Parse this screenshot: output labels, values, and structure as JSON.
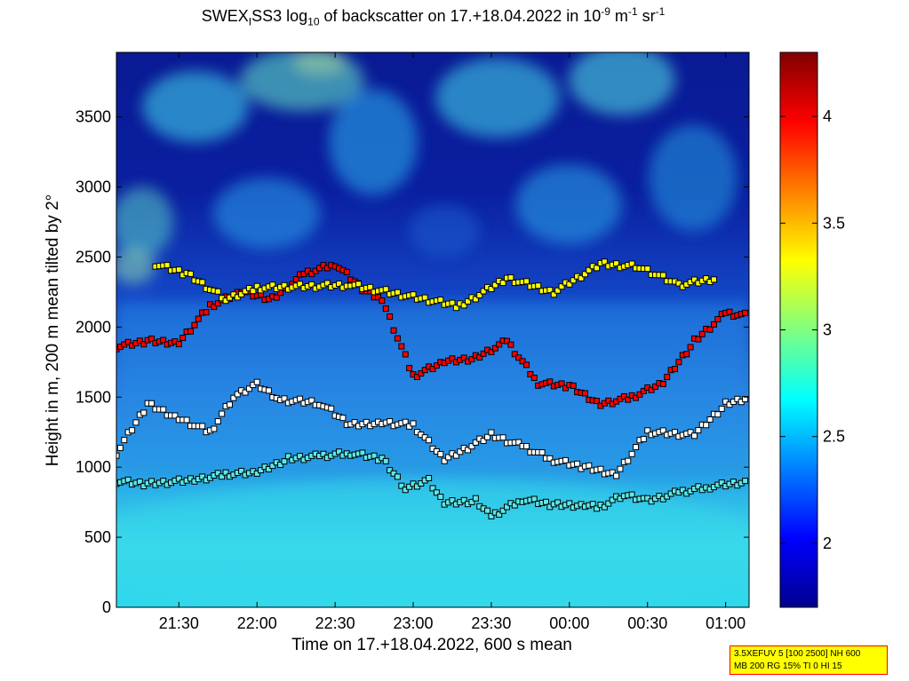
{
  "chart_data": {
    "type": "heatmap",
    "title": {
      "p1": "SWEX",
      "p1_sub": "I",
      "p2": "SS3 log",
      "p2_sub": "10",
      "p3": " of backscatter on 17.+18.04.2022 in 10",
      "p3_sup": "-9",
      "p4": " m",
      "p4_sup": "-1",
      "p5": " sr",
      "p5_sup": "-1"
    },
    "xlabel": "Time on 17.+18.04.2022, 600 s mean",
    "ylabel": "Height in m, 200 m mean tilted by 2°",
    "x_range_hours": [
      21.1,
      25.15
    ],
    "x_ticks": [
      {
        "h": 21.5,
        "label": "21:30"
      },
      {
        "h": 22.0,
        "label": "22:00"
      },
      {
        "h": 22.5,
        "label": "22:30"
      },
      {
        "h": 23.0,
        "label": "23:00"
      },
      {
        "h": 23.5,
        "label": "23:30"
      },
      {
        "h": 24.0,
        "label": "00:00"
      },
      {
        "h": 24.5,
        "label": "00:30"
      },
      {
        "h": 25.0,
        "label": "01:00"
      }
    ],
    "y_range": [
      0,
      3960
    ],
    "y_ticks": [
      0,
      500,
      1000,
      1500,
      2000,
      2500,
      3000,
      3500
    ],
    "colorbar": {
      "range": [
        1.7,
        4.3
      ],
      "ticks": [
        2,
        2.5,
        3,
        3.5,
        4
      ]
    },
    "layers": [
      {
        "name": "lowest",
        "color": "#5ce8e8",
        "points": [
          [
            21.1,
            900
          ],
          [
            21.3,
            880
          ],
          [
            21.6,
            910
          ],
          [
            21.8,
            950
          ],
          [
            22.0,
            960
          ],
          [
            22.2,
            1060
          ],
          [
            22.4,
            1080
          ],
          [
            22.6,
            1100
          ],
          [
            22.8,
            1060
          ],
          [
            22.95,
            850
          ],
          [
            23.1,
            910
          ],
          [
            23.2,
            740
          ],
          [
            23.4,
            760
          ],
          [
            23.5,
            650
          ],
          [
            23.7,
            770
          ],
          [
            23.9,
            730
          ],
          [
            24.1,
            730
          ],
          [
            24.2,
            720
          ],
          [
            24.35,
            800
          ],
          [
            24.5,
            760
          ],
          [
            24.7,
            820
          ],
          [
            24.9,
            860
          ],
          [
            25.15,
            900
          ]
        ]
      },
      {
        "name": "mid",
        "color": "#ffffff",
        "points": [
          [
            21.1,
            1100
          ],
          [
            21.3,
            1450
          ],
          [
            21.5,
            1350
          ],
          [
            21.7,
            1250
          ],
          [
            21.85,
            1500
          ],
          [
            22.0,
            1590
          ],
          [
            22.15,
            1480
          ],
          [
            22.4,
            1460
          ],
          [
            22.6,
            1300
          ],
          [
            22.8,
            1320
          ],
          [
            23.0,
            1300
          ],
          [
            23.2,
            1050
          ],
          [
            23.5,
            1230
          ],
          [
            23.7,
            1150
          ],
          [
            23.9,
            1050
          ],
          [
            24.1,
            1000
          ],
          [
            24.3,
            950
          ],
          [
            24.5,
            1250
          ],
          [
            24.8,
            1230
          ],
          [
            25.0,
            1450
          ],
          [
            25.15,
            1500
          ]
        ]
      },
      {
        "name": "upper",
        "color": "#ff0000",
        "points": [
          [
            21.1,
            1860
          ],
          [
            21.3,
            1900
          ],
          [
            21.5,
            1890
          ],
          [
            21.7,
            2150
          ],
          [
            21.9,
            2250
          ],
          [
            22.1,
            2200
          ],
          [
            22.3,
            2380
          ],
          [
            22.5,
            2450
          ],
          [
            22.7,
            2250
          ],
          [
            22.8,
            2200
          ],
          [
            23.0,
            1650
          ],
          [
            23.2,
            1750
          ],
          [
            23.4,
            1780
          ],
          [
            23.6,
            1900
          ],
          [
            23.8,
            1600
          ],
          [
            24.0,
            1580
          ],
          [
            24.2,
            1450
          ],
          [
            24.4,
            1500
          ],
          [
            24.6,
            1600
          ],
          [
            24.8,
            1900
          ],
          [
            25.0,
            2100
          ],
          [
            25.15,
            2080
          ]
        ]
      },
      {
        "name": "top",
        "color": "#ffff00",
        "points": [
          [
            21.35,
            2450
          ],
          [
            21.55,
            2380
          ],
          [
            21.8,
            2200
          ],
          [
            22.0,
            2280
          ],
          [
            22.6,
            2300
          ],
          [
            23.3,
            2150
          ],
          [
            23.6,
            2350
          ],
          [
            23.9,
            2250
          ],
          [
            24.2,
            2450
          ],
          [
            24.45,
            2430
          ],
          [
            24.7,
            2300
          ],
          [
            24.95,
            2350
          ]
        ]
      }
    ]
  },
  "info": {
    "line1": "3.5XEFUV 5 [100 2500] NH 600",
    "line2": "MB 200 RG 15% TI 0 HI 15"
  }
}
